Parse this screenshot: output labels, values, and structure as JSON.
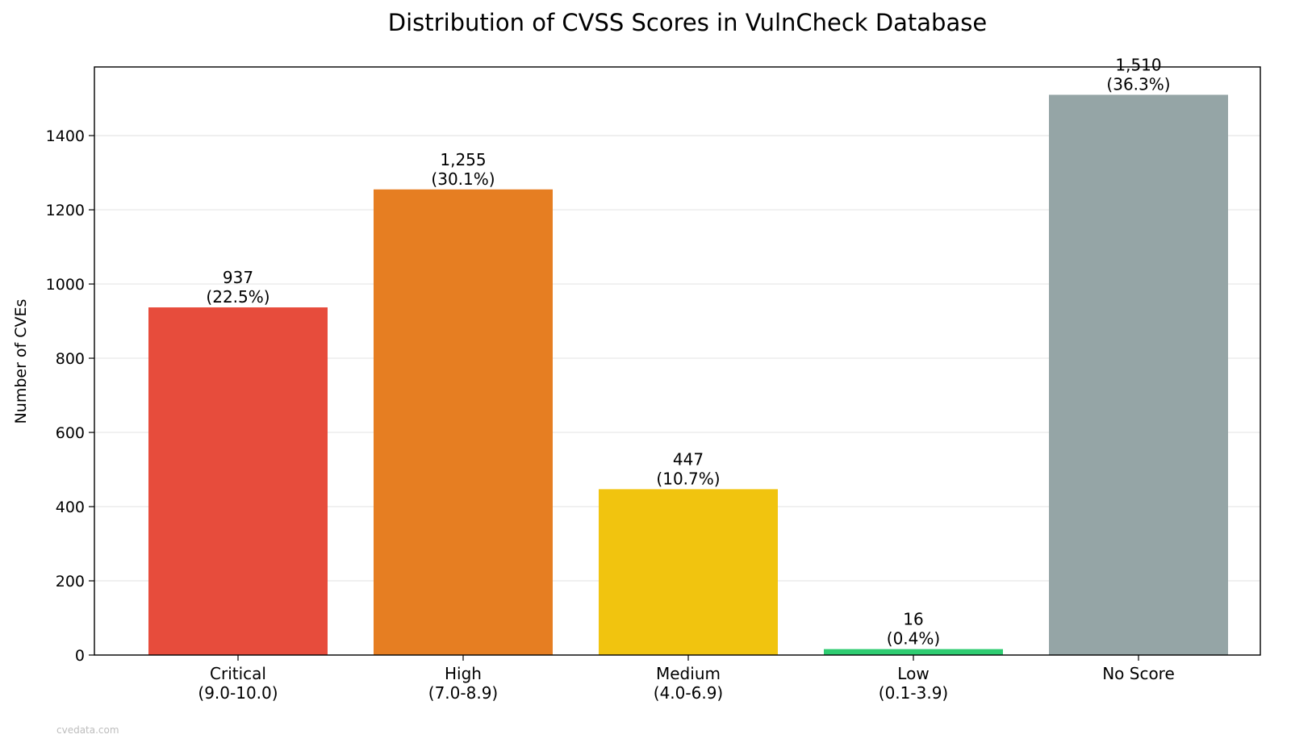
{
  "chart_data": {
    "type": "bar",
    "title": "Distribution of CVSS Scores in VulnCheck Database",
    "xlabel": "",
    "ylabel": "Number of CVEs",
    "ylim": [
      0,
      1585
    ],
    "yticks": [
      0,
      200,
      400,
      600,
      800,
      1000,
      1200,
      1400
    ],
    "grid": "horizontal",
    "categories": [
      [
        "Critical",
        "(9.0-10.0)"
      ],
      [
        "High",
        "(7.0-8.9)"
      ],
      [
        "Medium",
        "(4.0-6.9)"
      ],
      [
        "Low",
        "(0.1-3.9)"
      ],
      [
        "No Score"
      ]
    ],
    "values": [
      937,
      1255,
      447,
      16,
      1510
    ],
    "value_labels": [
      "937",
      "1,255",
      "447",
      "16",
      "1,510"
    ],
    "percent_labels": [
      "(22.5%)",
      "(30.1%)",
      "(10.7%)",
      "(0.4%)",
      "(36.3%)"
    ],
    "colors": [
      "#e74c3c",
      "#e67e22",
      "#f1c40f",
      "#2ecc71",
      "#95a5a6"
    ]
  },
  "watermark": "cvedata.com"
}
